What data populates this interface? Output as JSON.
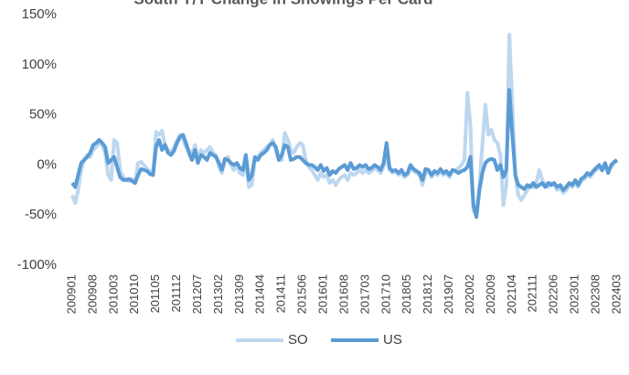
{
  "chart_data": {
    "type": "line",
    "title": "South Y/Y Change in Showings Per Card",
    "categories": [
      "200901",
      null,
      null,
      null,
      null,
      null,
      null,
      "200908",
      null,
      null,
      null,
      null,
      null,
      null,
      "201003",
      null,
      null,
      null,
      null,
      null,
      null,
      "201010",
      null,
      null,
      null,
      null,
      null,
      null,
      "201105",
      null,
      null,
      null,
      null,
      null,
      null,
      "201112",
      null,
      null,
      null,
      null,
      null,
      null,
      "201207",
      null,
      null,
      null,
      null,
      null,
      null,
      "201302",
      null,
      null,
      null,
      null,
      null,
      null,
      "201309",
      null,
      null,
      null,
      null,
      null,
      null,
      "201404",
      null,
      null,
      null,
      null,
      null,
      null,
      "201411",
      null,
      null,
      null,
      null,
      null,
      null,
      "201506",
      null,
      null,
      null,
      null,
      null,
      null,
      "201601",
      null,
      null,
      null,
      null,
      null,
      null,
      "201608",
      null,
      null,
      null,
      null,
      null,
      null,
      "201703",
      null,
      null,
      null,
      null,
      null,
      null,
      "201710",
      null,
      null,
      null,
      null,
      null,
      null,
      "201805",
      null,
      null,
      null,
      null,
      null,
      null,
      "201812",
      null,
      null,
      null,
      null,
      null,
      null,
      "201907",
      null,
      null,
      null,
      null,
      null,
      null,
      "202002",
      null,
      null,
      null,
      null,
      null,
      null,
      "202009",
      null,
      null,
      null,
      null,
      null,
      null,
      "202104",
      null,
      null,
      null,
      null,
      null,
      null,
      "202111",
      null,
      null,
      null,
      null,
      null,
      null,
      "202206",
      null,
      null,
      null,
      null,
      null,
      null,
      "202301",
      null,
      null,
      null,
      null,
      null,
      null,
      "202308",
      null,
      null,
      null,
      null,
      null,
      null,
      "202403"
    ],
    "series": [
      {
        "name": "SO",
        "color": "#bdd7ee",
        "values": [
          -30,
          -38,
          -25,
          -5,
          5,
          10,
          8,
          15,
          18,
          22,
          20,
          12,
          -10,
          -15,
          25,
          22,
          -5,
          -12,
          -15,
          -16,
          -14,
          -18,
          2,
          3,
          0,
          -4,
          -6,
          -8,
          33,
          30,
          34,
          20,
          15,
          12,
          18,
          25,
          30,
          25,
          18,
          15,
          10,
          20,
          5,
          15,
          12,
          15,
          18,
          12,
          10,
          -2,
          -8,
          5,
          8,
          0,
          -5,
          0,
          -8,
          -10,
          5,
          -22,
          -20,
          5,
          8,
          12,
          15,
          18,
          20,
          25,
          15,
          5,
          5,
          32,
          25,
          15,
          12,
          18,
          22,
          20,
          5,
          -2,
          -5,
          -10,
          -15,
          -8,
          -12,
          -10,
          -18,
          -15,
          -20,
          -15,
          -12,
          -10,
          -15,
          -8,
          -10,
          -8,
          -5,
          -8,
          -5,
          -8,
          -6,
          -3,
          -5,
          -8,
          -2,
          10,
          -5,
          -8,
          -6,
          -10,
          -8,
          -12,
          -10,
          -3,
          -6,
          -8,
          -10,
          -20,
          -8,
          -6,
          -12,
          -8,
          -10,
          -6,
          -10,
          -8,
          -12,
          -6,
          -5,
          -3,
          0,
          5,
          72,
          40,
          -45,
          -50,
          -20,
          20,
          60,
          30,
          35,
          25,
          22,
          10,
          -40,
          -20,
          130,
          60,
          -10,
          -30,
          -35,
          -30,
          -25,
          -20,
          -22,
          -18,
          -5,
          -15,
          -20,
          -22,
          -18,
          -20,
          -25,
          -22,
          -28,
          -25,
          -20,
          -22,
          -18,
          -22,
          -16,
          -14,
          -10,
          -12,
          -8,
          -5,
          -2,
          -6,
          0,
          -6,
          -2,
          2,
          4
        ]
      },
      {
        "name": "US",
        "color": "#5b9bd5",
        "values": [
          -18,
          -22,
          -10,
          2,
          5,
          8,
          12,
          20,
          22,
          25,
          22,
          18,
          2,
          5,
          8,
          -2,
          -12,
          -15,
          -15,
          -14,
          -16,
          -18,
          -10,
          -4,
          -5,
          -6,
          -9,
          -10,
          18,
          25,
          15,
          20,
          12,
          10,
          14,
          22,
          28,
          30,
          22,
          12,
          5,
          15,
          2,
          10,
          8,
          5,
          12,
          10,
          8,
          2,
          -5,
          6,
          5,
          2,
          0,
          2,
          -3,
          -5,
          10,
          -15,
          -10,
          8,
          5,
          10,
          12,
          15,
          20,
          22,
          18,
          5,
          10,
          20,
          18,
          5,
          6,
          8,
          8,
          5,
          2,
          0,
          0,
          -2,
          -5,
          0,
          -6,
          -3,
          -10,
          -6,
          -8,
          -4,
          -2,
          0,
          -5,
          2,
          -4,
          -3,
          0,
          -2,
          0,
          -4,
          -3,
          0,
          -2,
          -5,
          2,
          22,
          -3,
          -6,
          -5,
          -8,
          -5,
          -10,
          -8,
          0,
          -4,
          -6,
          -8,
          -15,
          -4,
          -5,
          -10,
          -6,
          -8,
          -4,
          -8,
          -6,
          -10,
          -5,
          -6,
          -8,
          -6,
          -5,
          -2,
          8,
          -40,
          -52,
          -25,
          -8,
          2,
          5,
          6,
          5,
          -5,
          0,
          -12,
          -5,
          75,
          30,
          -10,
          -20,
          -22,
          -24,
          -20,
          -22,
          -18,
          -22,
          -20,
          -18,
          -22,
          -18,
          -20,
          -18,
          -22,
          -20,
          -25,
          -22,
          -18,
          -20,
          -15,
          -20,
          -14,
          -12,
          -8,
          -10,
          -6,
          -3,
          0,
          -5,
          2,
          -8,
          0,
          3,
          5
        ]
      }
    ],
    "ylim": [
      -100,
      150
    ],
    "yticks": [
      {
        "value": -100,
        "label": "-100%"
      },
      {
        "value": -50,
        "label": "-50%"
      },
      {
        "value": 0,
        "label": "0%"
      },
      {
        "value": 50,
        "label": "50%"
      },
      {
        "value": 100,
        "label": "100%"
      },
      {
        "value": 150,
        "label": "150%"
      }
    ],
    "grid": false
  }
}
